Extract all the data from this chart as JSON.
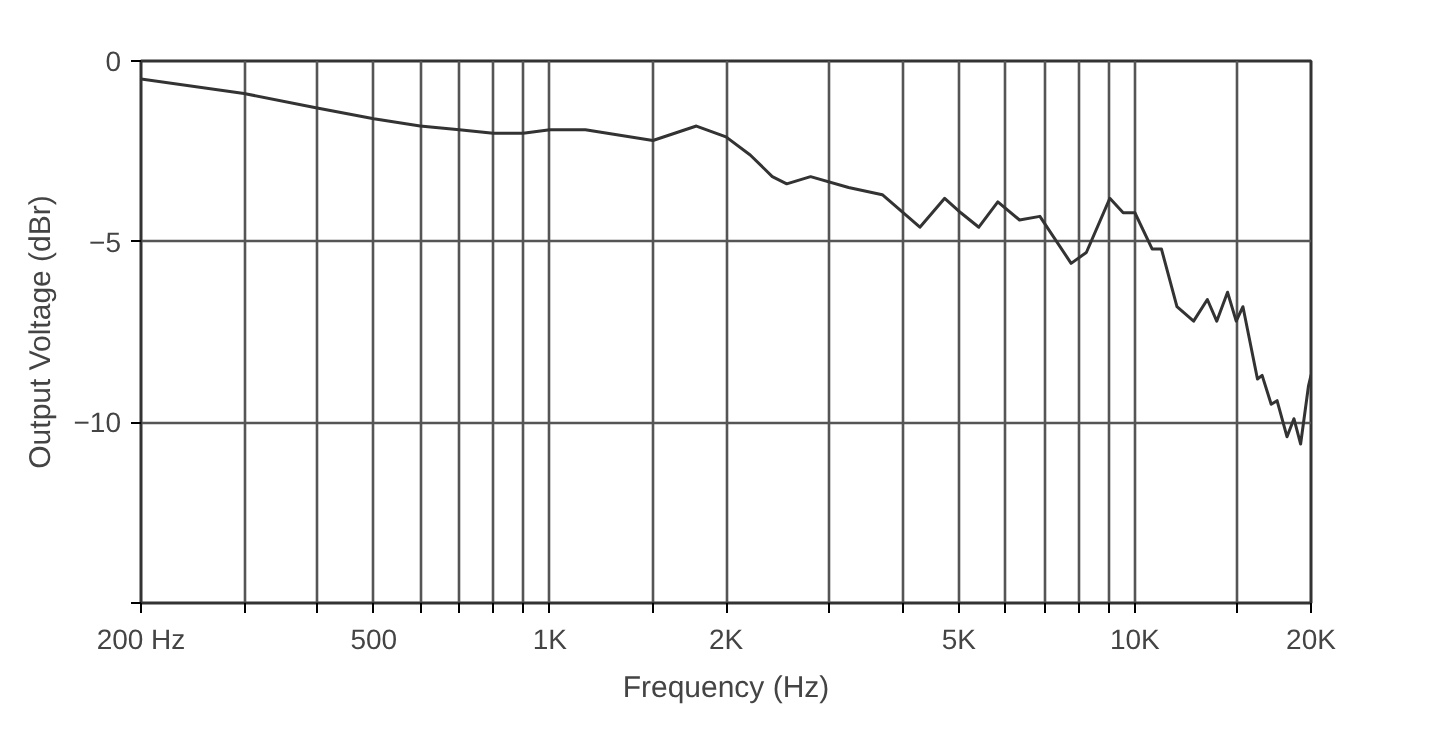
{
  "chart_data": {
    "type": "line",
    "xlabel": "Frequency (Hz)",
    "ylabel": "Output Voltage (dBr)",
    "log": "x",
    "grid": true,
    "line_style": "solid",
    "xlim": [
      200,
      20000
    ],
    "ylim": [
      -15,
      0
    ],
    "xticks": [
      {
        "value": 200,
        "label": "200 Hz"
      },
      {
        "value": 300,
        "label": null
      },
      {
        "value": 400,
        "label": null
      },
      500,
      {
        "value": 600,
        "label": null
      },
      {
        "value": 700,
        "label": null
      },
      {
        "value": 800,
        "label": null
      },
      {
        "value": 900,
        "label": null
      },
      {
        "value": 1000,
        "label": "1K"
      },
      {
        "value": 1500,
        "label": null
      },
      {
        "value": 2000,
        "label": "2K"
      },
      {
        "value": 3000,
        "label": null
      },
      {
        "value": 4000,
        "label": null
      },
      {
        "value": 5000,
        "label": "5K"
      },
      {
        "value": 6000,
        "label": null
      },
      {
        "value": 7000,
        "label": null
      },
      {
        "value": 8000,
        "label": null
      },
      {
        "value": 9000,
        "label": null
      },
      {
        "value": 10000,
        "label": "10K"
      },
      {
        "value": 15000,
        "label": null
      },
      {
        "value": 20000,
        "label": "20K"
      }
    ],
    "yticks": [
      0,
      -5,
      -10,
      {
        "value": -15,
        "label": null
      }
    ],
    "series": [
      {
        "color": "#333333",
        "x": [
          200,
          300,
          400,
          500,
          600,
          700,
          800,
          900,
          1000,
          1150,
          1500,
          1780,
          2000,
          2200,
          2400,
          2540,
          2790,
          3240,
          3700,
          4290,
          4730,
          5040,
          5410,
          5830,
          6350,
          6880,
          7780,
          8260,
          9060,
          9550,
          10000,
          10700,
          11100,
          11800,
          12600,
          13300,
          13800,
          14400,
          14900,
          15300,
          16200,
          16500,
          17100,
          17500,
          18200,
          18700,
          19200,
          19800,
          20000
        ],
        "values": [
          -0.5,
          -0.9,
          -1.3,
          -1.6,
          -1.8,
          -1.9,
          -2.0,
          -2.0,
          -1.9,
          -1.9,
          -2.2,
          -1.8,
          -2.1,
          -2.6,
          -3.2,
          -3.4,
          -3.2,
          -3.5,
          -3.7,
          -4.6,
          -3.8,
          -4.2,
          -4.6,
          -3.9,
          -4.4,
          -4.3,
          -5.6,
          -5.3,
          -3.8,
          -4.2,
          -4.2,
          -5.2,
          -5.2,
          -6.8,
          -7.2,
          -6.6,
          -7.2,
          -6.4,
          -7.2,
          -6.8,
          -8.8,
          -8.7,
          -9.5,
          -9.4,
          -10.4,
          -9.9,
          -10.6,
          -9.0,
          -8.7
        ]
      }
    ]
  }
}
